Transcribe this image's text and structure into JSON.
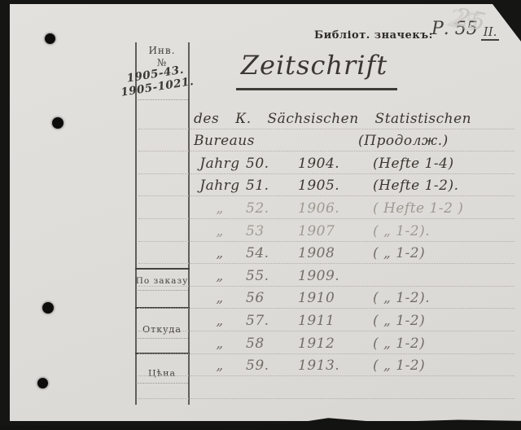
{
  "card": {
    "corner_note": "25",
    "stamp": {
      "label": "Библіот. значекъ:",
      "value": "Р. 55",
      "value2": "II."
    },
    "title": "Zeitschrift",
    "subtitle_line1": "des К. Sächsischen Statistischen",
    "subtitle_line2": "Bureaus",
    "subtitle_note": "(Продолж.)",
    "sidebar": {
      "inv_label": "Инв.",
      "no_label": "№",
      "inv_number1": "1905-43.",
      "inv_number2": "1905-1021.",
      "order_label": "По заказу",
      "origin_label": "Откуда",
      "price_label": "Цѣна"
    },
    "entries": [
      {
        "label": "Jahrg",
        "num": "50.",
        "year": "1904.",
        "note": "(Hefte 1-4)",
        "ink": "dark"
      },
      {
        "label": "Jahrg",
        "num": "51.",
        "year": "1905.",
        "note": "(Hefte 1-2).",
        "ink": "dark"
      },
      {
        "label": "„",
        "num": "52.",
        "year": "1906.",
        "note": "( Hefte 1-2 )",
        "ink": "light"
      },
      {
        "label": "„",
        "num": "53",
        "year": "1907",
        "note": "( „ 1-2).",
        "ink": "light"
      },
      {
        "label": "„",
        "num": "54.",
        "year": "1908",
        "note": "( „ 1-2)",
        "ink": "mid"
      },
      {
        "label": "„",
        "num": "55.",
        "year": "1909.",
        "note": "",
        "ink": "mid"
      },
      {
        "label": "„",
        "num": "56",
        "year": "1910",
        "note": "( „ 1-2).",
        "ink": "mid"
      },
      {
        "label": "„",
        "num": "57.",
        "year": "1911",
        "note": "( „ 1-2)",
        "ink": "mid"
      },
      {
        "label": "„",
        "num": "58",
        "year": "1912",
        "note": "( „ 1-2)",
        "ink": "mid"
      },
      {
        "label": "„",
        "num": "59.",
        "year": "1913.",
        "note": "( „ 1-2)",
        "ink": "mid"
      }
    ],
    "colors": {
      "paper": "#e1dfdb",
      "ink_dark": "#3a3731",
      "pencil_light": "#9d9a93",
      "pencil_mid": "#716e68"
    }
  }
}
